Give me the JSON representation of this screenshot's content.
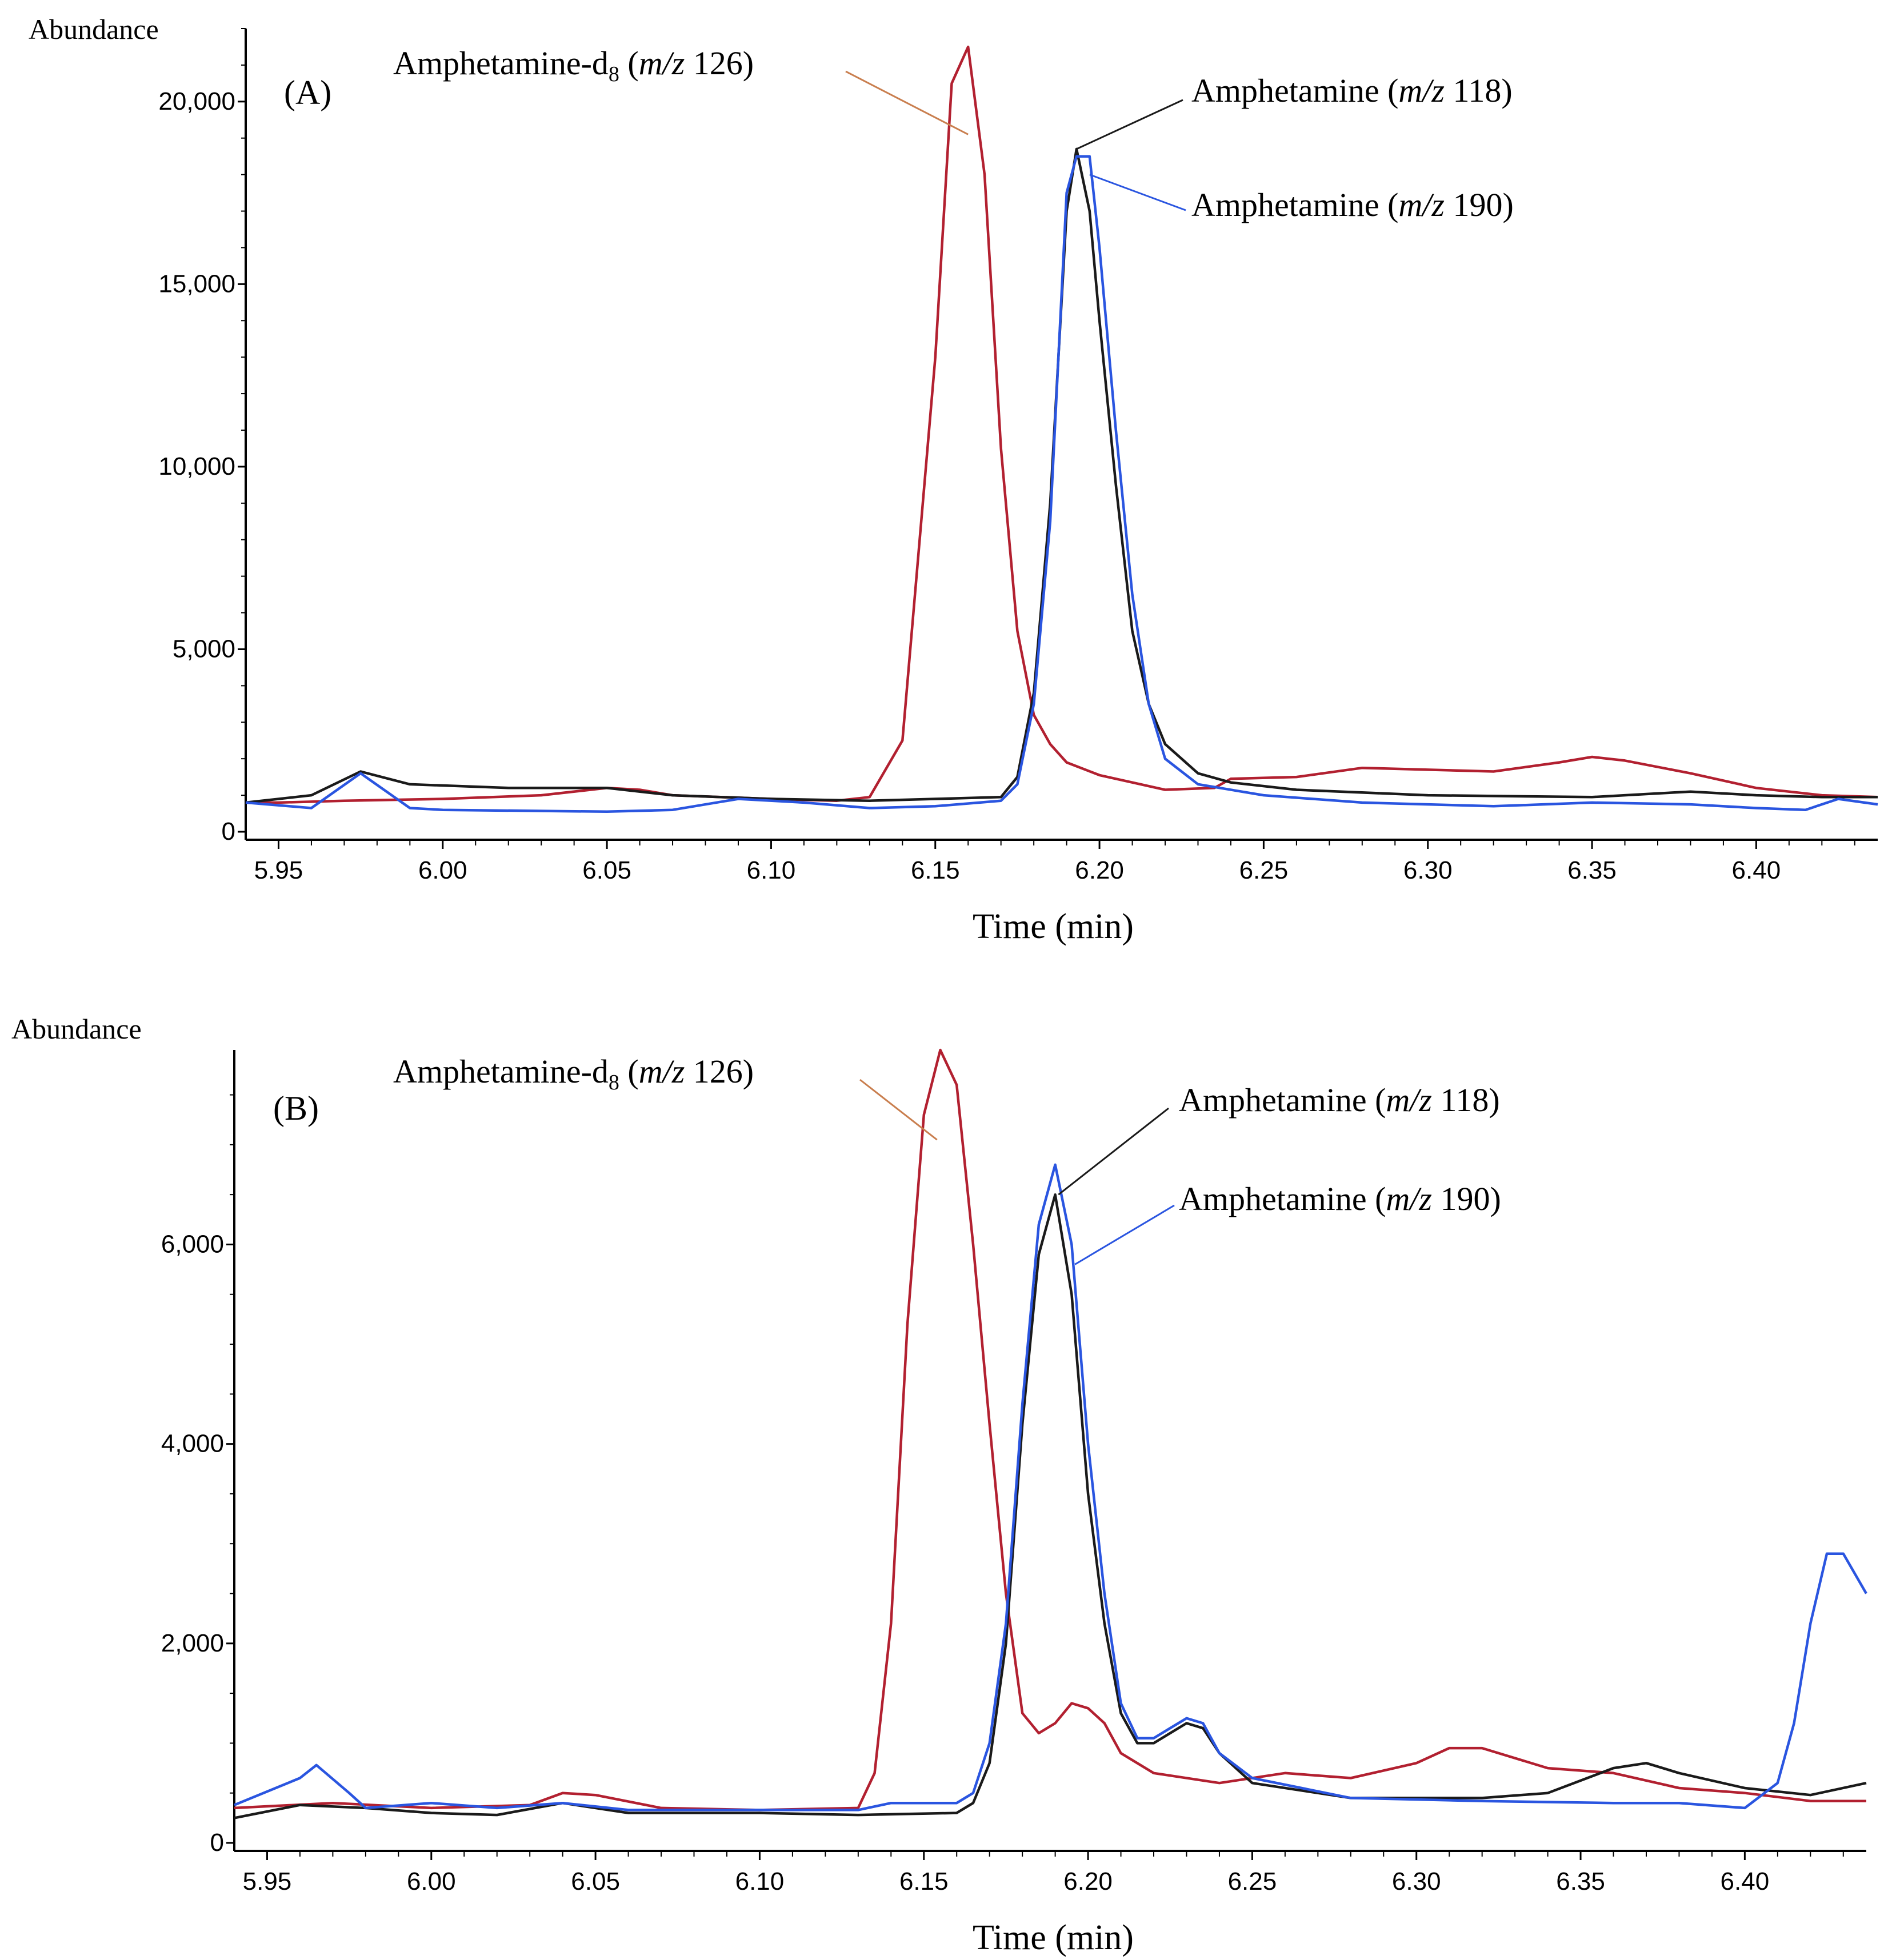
{
  "chart_data": [
    {
      "panel": "(A)",
      "type": "line",
      "title": "",
      "ylabel": "Abundance",
      "xlabel": "Time (min)",
      "xlim": [
        5.94,
        6.437
      ],
      "ylim": [
        0,
        22000
      ],
      "xticks": [
        "5.95",
        "6.00",
        "6.05",
        "6.10",
        "6.15",
        "6.20",
        "6.25",
        "6.30",
        "6.35",
        "6.40"
      ],
      "yticks": [
        "0",
        "5,000",
        "10,000",
        "15,000",
        "20,000"
      ],
      "colors": {
        "m126": "#b22030",
        "m118": "#1a1a1a",
        "m190": "#2a55e0",
        "leader126": "#c97e4e",
        "leader118": "#1a1a1a",
        "leader190": "#2a55e0"
      },
      "annotations": [
        {
          "series": "m126",
          "name": "Amphetamine-d",
          "sub": "8",
          "open": " (",
          "mz": "m/z",
          "num": " 126)",
          "target": [
            6.16,
            19100
          ]
        },
        {
          "series": "m118",
          "name": "Amphetamine",
          "open": " (",
          "mz": "m/z",
          "num": " 118)",
          "target": [
            6.193,
            18700
          ]
        },
        {
          "series": "m190",
          "name": "Amphetamine",
          "open": " (",
          "mz": "m/z",
          "num": " 190)",
          "target": [
            6.197,
            18000
          ]
        }
      ],
      "series": [
        {
          "name": "m/z 126",
          "key": "m126",
          "points": [
            [
              5.94,
              800
            ],
            [
              5.95,
              800
            ],
            [
              5.97,
              850
            ],
            [
              6.0,
              900
            ],
            [
              6.03,
              1000
            ],
            [
              6.05,
              1200
            ],
            [
              6.06,
              1150
            ],
            [
              6.07,
              1000
            ],
            [
              6.1,
              900
            ],
            [
              6.12,
              850
            ],
            [
              6.13,
              950
            ],
            [
              6.14,
              2500
            ],
            [
              6.15,
              13000
            ],
            [
              6.155,
              20500
            ],
            [
              6.16,
              21500
            ],
            [
              6.165,
              18000
            ],
            [
              6.17,
              10500
            ],
            [
              6.175,
              5500
            ],
            [
              6.18,
              3200
            ],
            [
              6.185,
              2400
            ],
            [
              6.19,
              1900
            ],
            [
              6.2,
              1550
            ],
            [
              6.21,
              1350
            ],
            [
              6.22,
              1150
            ],
            [
              6.235,
              1200
            ],
            [
              6.24,
              1450
            ],
            [
              6.26,
              1500
            ],
            [
              6.28,
              1750
            ],
            [
              6.3,
              1700
            ],
            [
              6.32,
              1650
            ],
            [
              6.34,
              1900
            ],
            [
              6.35,
              2050
            ],
            [
              6.36,
              1950
            ],
            [
              6.38,
              1600
            ],
            [
              6.4,
              1200
            ],
            [
              6.42,
              1000
            ],
            [
              6.437,
              950
            ]
          ]
        },
        {
          "name": "m/z 118",
          "key": "m118",
          "points": [
            [
              5.94,
              800
            ],
            [
              5.96,
              1000
            ],
            [
              5.975,
              1650
            ],
            [
              5.99,
              1300
            ],
            [
              6.02,
              1200
            ],
            [
              6.05,
              1200
            ],
            [
              6.07,
              1000
            ],
            [
              6.1,
              900
            ],
            [
              6.13,
              850
            ],
            [
              6.15,
              900
            ],
            [
              6.17,
              950
            ],
            [
              6.175,
              1500
            ],
            [
              6.18,
              3800
            ],
            [
              6.185,
              9000
            ],
            [
              6.19,
              17000
            ],
            [
              6.193,
              18700
            ],
            [
              6.197,
              17000
            ],
            [
              6.2,
              14000
            ],
            [
              6.205,
              9500
            ],
            [
              6.21,
              5500
            ],
            [
              6.215,
              3500
            ],
            [
              6.22,
              2400
            ],
            [
              6.23,
              1600
            ],
            [
              6.24,
              1350
            ],
            [
              6.26,
              1150
            ],
            [
              6.3,
              1000
            ],
            [
              6.35,
              950
            ],
            [
              6.37,
              1050
            ],
            [
              6.38,
              1100
            ],
            [
              6.4,
              1000
            ],
            [
              6.42,
              950
            ],
            [
              6.437,
              950
            ]
          ]
        },
        {
          "name": "m/z 190",
          "key": "m190",
          "points": [
            [
              5.94,
              800
            ],
            [
              5.96,
              650
            ],
            [
              5.975,
              1600
            ],
            [
              5.99,
              650
            ],
            [
              6.0,
              600
            ],
            [
              6.05,
              550
            ],
            [
              6.07,
              600
            ],
            [
              6.09,
              900
            ],
            [
              6.11,
              800
            ],
            [
              6.13,
              650
            ],
            [
              6.15,
              700
            ],
            [
              6.17,
              850
            ],
            [
              6.175,
              1300
            ],
            [
              6.18,
              3500
            ],
            [
              6.185,
              8500
            ],
            [
              6.19,
              17500
            ],
            [
              6.193,
              18500
            ],
            [
              6.197,
              18500
            ],
            [
              6.2,
              16000
            ],
            [
              6.205,
              11000
            ],
            [
              6.21,
              6500
            ],
            [
              6.215,
              3500
            ],
            [
              6.22,
              2000
            ],
            [
              6.23,
              1300
            ],
            [
              6.25,
              1000
            ],
            [
              6.28,
              800
            ],
            [
              6.32,
              700
            ],
            [
              6.35,
              800
            ],
            [
              6.38,
              750
            ],
            [
              6.4,
              650
            ],
            [
              6.415,
              600
            ],
            [
              6.425,
              900
            ],
            [
              6.437,
              750
            ]
          ]
        }
      ]
    },
    {
      "panel": "(B)",
      "type": "line",
      "title": "",
      "ylabel": "Abundance",
      "xlabel": "Time (min)",
      "xlim": [
        5.94,
        6.437
      ],
      "ylim": [
        0,
        7950
      ],
      "xticks": [
        "5.95",
        "6.00",
        "6.05",
        "6.10",
        "6.15",
        "6.20",
        "6.25",
        "6.30",
        "6.35",
        "6.40"
      ],
      "yticks": [
        "0",
        "2,000",
        "4,000",
        "6,000"
      ],
      "colors": {
        "m126": "#b22030",
        "m118": "#1a1a1a",
        "m190": "#2a55e0",
        "leader126": "#c97e4e",
        "leader118": "#1a1a1a",
        "leader190": "#2a55e0"
      },
      "annotations": [
        {
          "series": "m126",
          "name": "Amphetamine-d",
          "sub": "8",
          "open": " (",
          "mz": "m/z",
          "num": " 126)",
          "target": [
            6.154,
            7050
          ]
        },
        {
          "series": "m118",
          "name": "Amphetamine",
          "open": " (",
          "mz": "m/z",
          "num": " 118)",
          "target": [
            6.191,
            6500
          ]
        },
        {
          "series": "m190",
          "name": "Amphetamine",
          "open": " (",
          "mz": "m/z",
          "num": " 190)",
          "target": [
            6.196,
            5800
          ]
        }
      ],
      "series": [
        {
          "name": "m/z 126",
          "key": "m126",
          "points": [
            [
              5.94,
              350
            ],
            [
              5.97,
              400
            ],
            [
              6.0,
              350
            ],
            [
              6.03,
              380
            ],
            [
              6.04,
              500
            ],
            [
              6.05,
              480
            ],
            [
              6.07,
              350
            ],
            [
              6.1,
              330
            ],
            [
              6.13,
              350
            ],
            [
              6.135,
              700
            ],
            [
              6.14,
              2200
            ],
            [
              6.145,
              5200
            ],
            [
              6.15,
              7300
            ],
            [
              6.155,
              7950
            ],
            [
              6.16,
              7600
            ],
            [
              6.165,
              6000
            ],
            [
              6.17,
              4200
            ],
            [
              6.175,
              2500
            ],
            [
              6.18,
              1300
            ],
            [
              6.185,
              1100
            ],
            [
              6.19,
              1200
            ],
            [
              6.195,
              1400
            ],
            [
              6.2,
              1350
            ],
            [
              6.205,
              1200
            ],
            [
              6.21,
              900
            ],
            [
              6.22,
              700
            ],
            [
              6.24,
              600
            ],
            [
              6.26,
              700
            ],
            [
              6.28,
              650
            ],
            [
              6.3,
              800
            ],
            [
              6.31,
              950
            ],
            [
              6.32,
              950
            ],
            [
              6.34,
              750
            ],
            [
              6.36,
              700
            ],
            [
              6.38,
              550
            ],
            [
              6.4,
              500
            ],
            [
              6.42,
              420
            ],
            [
              6.437,
              420
            ]
          ]
        },
        {
          "name": "m/z 118",
          "key": "m118",
          "points": [
            [
              5.94,
              250
            ],
            [
              5.96,
              380
            ],
            [
              5.98,
              350
            ],
            [
              6.0,
              300
            ],
            [
              6.02,
              280
            ],
            [
              6.04,
              400
            ],
            [
              6.06,
              300
            ],
            [
              6.1,
              300
            ],
            [
              6.13,
              280
            ],
            [
              6.16,
              300
            ],
            [
              6.165,
              400
            ],
            [
              6.17,
              800
            ],
            [
              6.175,
              2000
            ],
            [
              6.18,
              4200
            ],
            [
              6.185,
              5900
            ],
            [
              6.19,
              6500
            ],
            [
              6.195,
              5500
            ],
            [
              6.2,
              3500
            ],
            [
              6.205,
              2200
            ],
            [
              6.21,
              1300
            ],
            [
              6.215,
              1000
            ],
            [
              6.22,
              1000
            ],
            [
              6.225,
              1100
            ],
            [
              6.23,
              1200
            ],
            [
              6.235,
              1150
            ],
            [
              6.24,
              900
            ],
            [
              6.25,
              600
            ],
            [
              6.28,
              450
            ],
            [
              6.3,
              450
            ],
            [
              6.32,
              450
            ],
            [
              6.34,
              500
            ],
            [
              6.36,
              750
            ],
            [
              6.37,
              800
            ],
            [
              6.38,
              700
            ],
            [
              6.4,
              550
            ],
            [
              6.42,
              480
            ],
            [
              6.437,
              600
            ]
          ]
        },
        {
          "name": "m/z 190",
          "key": "m190",
          "points": [
            [
              5.94,
              380
            ],
            [
              5.96,
              650
            ],
            [
              5.965,
              780
            ],
            [
              5.975,
              500
            ],
            [
              5.98,
              350
            ],
            [
              6.0,
              400
            ],
            [
              6.02,
              350
            ],
            [
              6.04,
              400
            ],
            [
              6.06,
              330
            ],
            [
              6.1,
              330
            ],
            [
              6.13,
              330
            ],
            [
              6.14,
              400
            ],
            [
              6.16,
              400
            ],
            [
              6.165,
              500
            ],
            [
              6.17,
              1000
            ],
            [
              6.175,
              2200
            ],
            [
              6.18,
              4400
            ],
            [
              6.185,
              6200
            ],
            [
              6.19,
              6800
            ],
            [
              6.195,
              6000
            ],
            [
              6.2,
              4000
            ],
            [
              6.205,
              2500
            ],
            [
              6.21,
              1400
            ],
            [
              6.215,
              1050
            ],
            [
              6.22,
              1050
            ],
            [
              6.225,
              1150
            ],
            [
              6.23,
              1250
            ],
            [
              6.235,
              1200
            ],
            [
              6.24,
              900
            ],
            [
              6.25,
              650
            ],
            [
              6.28,
              450
            ],
            [
              6.32,
              420
            ],
            [
              6.36,
              400
            ],
            [
              6.38,
              400
            ],
            [
              6.4,
              350
            ],
            [
              6.41,
              600
            ],
            [
              6.415,
              1200
            ],
            [
              6.42,
              2200
            ],
            [
              6.425,
              2900
            ],
            [
              6.43,
              2900
            ],
            [
              6.437,
              2500
            ]
          ]
        }
      ]
    }
  ]
}
